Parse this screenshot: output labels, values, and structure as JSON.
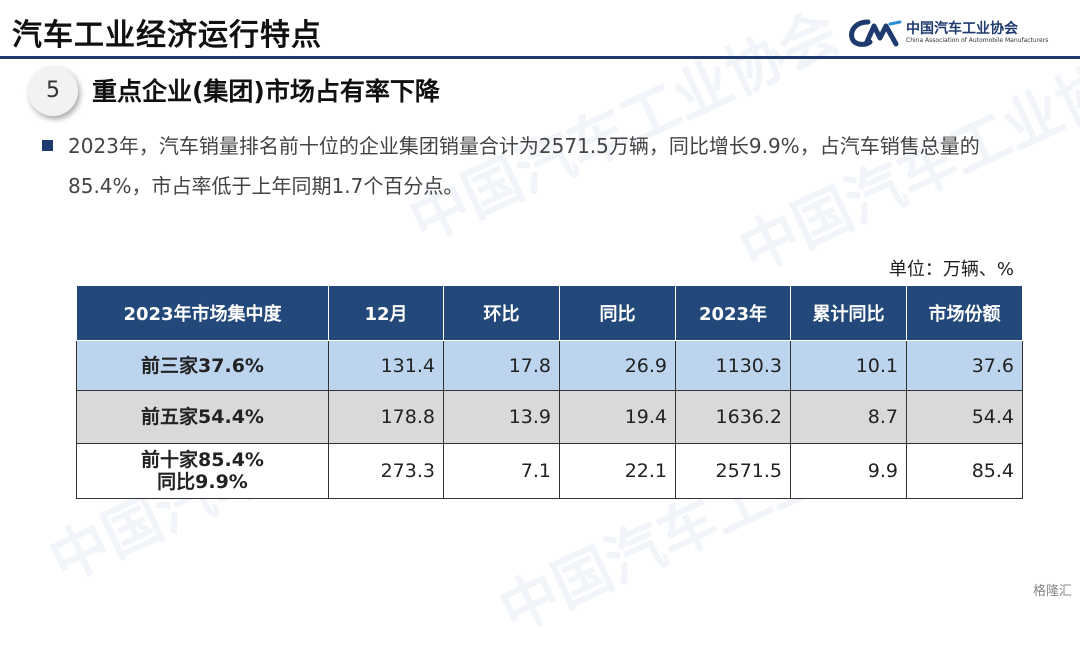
{
  "header": {
    "title": "汽车工业经济运行特点",
    "logo_cn": "中国汽车工业协会",
    "logo_en": "China Association of Automobile Manufacturers"
  },
  "section": {
    "number": "5",
    "title": "重点企业(集团)市场占有率下降"
  },
  "paragraph": "2023年，汽车销量排名前十位的企业集团销量合计为2571.5万辆，同比增长9.9%，占汽车销售总量的85.4%，市占率低于上年同期1.7个百分点。",
  "unit": "单位：万辆、%",
  "table": {
    "headers": [
      "2023年市场集中度",
      "12月",
      "环比",
      "同比",
      "2023年",
      "累计同比",
      "市场份额"
    ],
    "rows": [
      {
        "label": [
          "前三家37.6%"
        ],
        "values": [
          "131.4",
          "17.8",
          "26.9",
          "1130.3",
          "10.1",
          "37.6"
        ]
      },
      {
        "label": [
          "前五家54.4%"
        ],
        "values": [
          "178.8",
          "13.9",
          "19.4",
          "1636.2",
          "8.7",
          "54.4"
        ]
      },
      {
        "label": [
          "前十家85.4%",
          "同比9.9%"
        ],
        "values": [
          "273.3",
          "7.1",
          "22.1",
          "2571.5",
          "9.9",
          "85.4"
        ]
      }
    ]
  },
  "footer_watermark": "格隆汇",
  "colors": {
    "navy": "#1e3a6e",
    "header_cell": "#23497a",
    "row1": "#bcd4ee",
    "row2": "#d9d9d9"
  }
}
